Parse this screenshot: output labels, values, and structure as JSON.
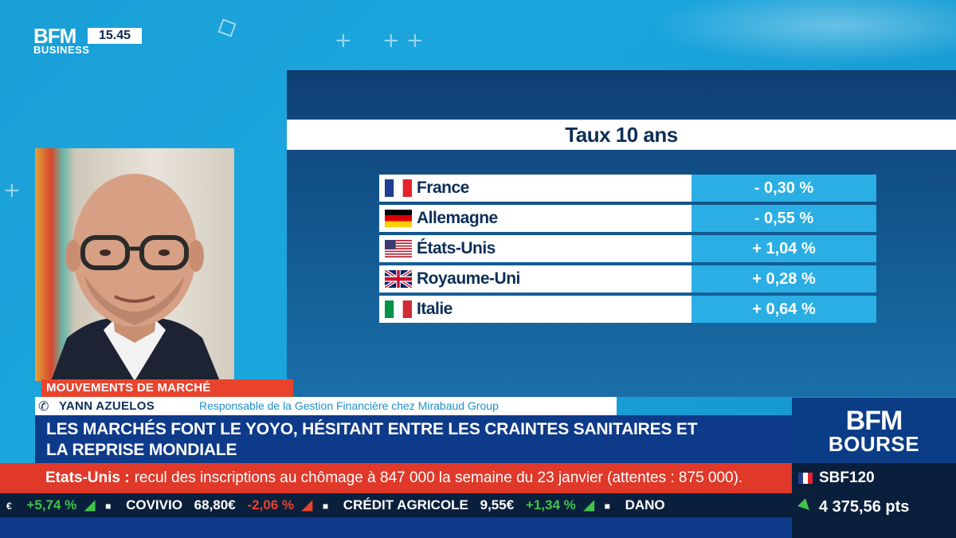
{
  "channel": {
    "logo_top": "BFM",
    "logo_bottom": "BUSINESS",
    "time": "15.45"
  },
  "panel": {
    "title": "Taux 10 ans",
    "rows": [
      {
        "country": "France",
        "flag": "fr-flag-icon",
        "value": "- 0,30 %"
      },
      {
        "country": "Allemagne",
        "flag": "de-flag-icon",
        "value": "- 0,55 %"
      },
      {
        "country": "États-Unis",
        "flag": "us-flag-icon",
        "value": "+ 1,04 %"
      },
      {
        "country": "Royaume-Uni",
        "flag": "uk-flag-icon",
        "value": "+ 0,28 %"
      },
      {
        "country": "Italie",
        "flag": "it-flag-icon",
        "value": "+ 0,64 %"
      }
    ]
  },
  "lower_third": {
    "tag": "MOUVEMENTS DE MARCHÉ",
    "guest_name": "YANN AZUELOS",
    "guest_role": "Responsable de la Gestion Financière chez Mirabaud Group",
    "headline_line1": "LES MARCHÉS FONT LE YOYO, HÉSITANT ENTRE LES CRAINTES SANITAIRES ET",
    "headline_line2": "LA REPRISE MONDIALE"
  },
  "bourse": {
    "top": "BFM",
    "label": "BOURSE"
  },
  "news": {
    "key": "Etats-Unis :",
    "text": "recul des inscriptions au chômage à 847 000 la semaine du 23 janvier (attentes : 875 000)."
  },
  "stocks": [
    {
      "name": "",
      "price": "",
      "change": "+5,74 %",
      "direction": "up"
    },
    {
      "name": "COVIVIO",
      "price": "68,80€",
      "change": "-2,06 %",
      "direction": "down"
    },
    {
      "name": "CRÉDIT AGRICOLE",
      "price": "9,55€",
      "change": "+1,34 %",
      "direction": "up"
    },
    {
      "name": "DANO",
      "price": "",
      "change": "",
      "direction": "up"
    }
  ],
  "index": {
    "name": "SBF120",
    "value": "4 375,56 pts",
    "direction": "up"
  },
  "colors": {
    "background": "#1ca6de",
    "panel": "#0f3f73",
    "value_cell": "#2aaee4",
    "accent_red": "#e8442d",
    "navy": "#0e3a8a",
    "up": "#41c34a",
    "down": "#e8442d"
  }
}
